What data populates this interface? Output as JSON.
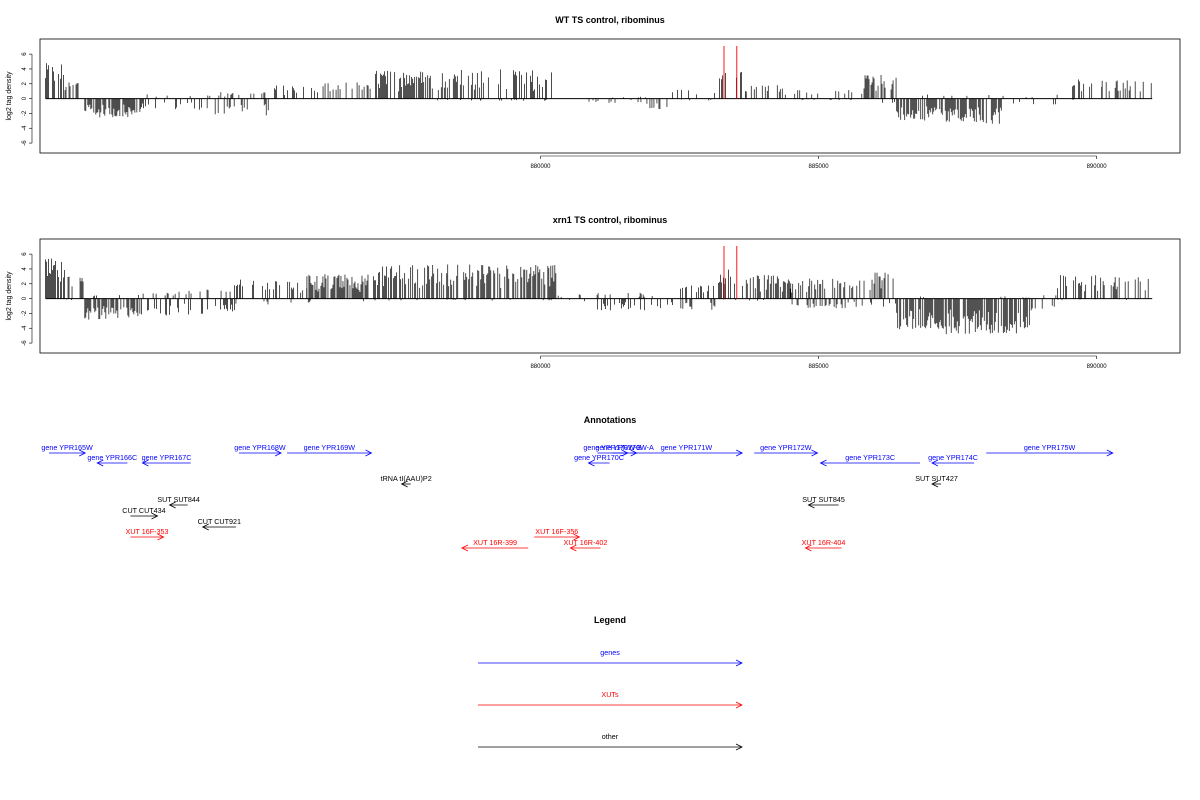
{
  "chart_data": [
    {
      "type": "bar",
      "title": "WT TS control, ribominus",
      "ylabel": "log2 tag density",
      "xlim": [
        871000,
        891500
      ],
      "ylim": [
        -6.8,
        7.5
      ],
      "x_ticks": [
        880000,
        885000,
        890000
      ],
      "y_ticks": [
        -6,
        -4,
        -2,
        0,
        2,
        4,
        6
      ],
      "data_range": [
        871100,
        891000
      ],
      "highlight_x": [
        883300,
        883530
      ],
      "segments": [
        [
          871100,
          871450,
          2.3,
          4.8,
          0
        ],
        [
          871450,
          871700,
          1.5,
          2.5,
          0
        ],
        [
          871800,
          872800,
          0.0,
          0.0,
          -2.6
        ],
        [
          872800,
          874000,
          0.2,
          0.6,
          -1.5
        ],
        [
          874000,
          875200,
          0.4,
          0.9,
          -2.4
        ],
        [
          875200,
          876000,
          0.8,
          1.8,
          0
        ],
        [
          876000,
          877000,
          1.0,
          2.2,
          -0.3
        ],
        [
          877000,
          878000,
          2.2,
          3.8,
          0
        ],
        [
          878000,
          880200,
          1.4,
          4.0,
          -0.3
        ],
        [
          880200,
          881800,
          0.0,
          0.2,
          -0.6
        ],
        [
          881800,
          882300,
          0.0,
          0.4,
          -1.4
        ],
        [
          882300,
          883200,
          0.3,
          1.3,
          -0.3
        ],
        [
          883200,
          883700,
          1.2,
          3.8,
          0
        ],
        [
          883700,
          884500,
          0.8,
          2.0,
          0
        ],
        [
          884500,
          885800,
          0.3,
          1.2,
          -0.2
        ],
        [
          885800,
          886400,
          1.3,
          3.2,
          -0.8
        ],
        [
          886400,
          887200,
          0.0,
          0.6,
          -3.0
        ],
        [
          887200,
          888300,
          0.0,
          0.5,
          -3.4
        ],
        [
          888300,
          889300,
          0.0,
          0.6,
          -0.9
        ],
        [
          889300,
          890100,
          0.8,
          2.6,
          -0.2
        ],
        [
          890100,
          891000,
          1.0,
          2.5,
          0
        ]
      ]
    },
    {
      "type": "bar",
      "title": "xrn1 TS control, ribominus",
      "ylabel": "log2 tag density",
      "xlim": [
        871000,
        891500
      ],
      "ylim": [
        -6.8,
        7.5
      ],
      "x_ticks": [
        880000,
        885000,
        890000
      ],
      "y_ticks": [
        -6,
        -4,
        -2,
        0,
        2,
        4,
        6
      ],
      "data_range": [
        871100,
        891000
      ],
      "highlight_x": [
        883300,
        883530
      ],
      "segments": [
        [
          871100,
          871450,
          2.5,
          5.4,
          0
        ],
        [
          871450,
          871800,
          1.8,
          3.0,
          -0.2
        ],
        [
          871800,
          872800,
          0.2,
          0.5,
          -3.0
        ],
        [
          872800,
          873500,
          0.3,
          0.8,
          -2.3
        ],
        [
          873500,
          874500,
          0.5,
          1.4,
          -2.2
        ],
        [
          874500,
          875800,
          1.2,
          2.6,
          -0.8
        ],
        [
          875800,
          877000,
          2.0,
          3.3,
          -0.6
        ],
        [
          877000,
          880300,
          2.2,
          4.6,
          -0.3
        ],
        [
          880300,
          881000,
          0.2,
          0.6,
          -0.4
        ],
        [
          881000,
          882500,
          0.2,
          0.8,
          -1.6
        ],
        [
          882500,
          883200,
          0.6,
          1.8,
          -1.6
        ],
        [
          883200,
          883700,
          1.5,
          4.0,
          -0.3
        ],
        [
          883700,
          884500,
          1.5,
          3.2,
          -0.3
        ],
        [
          884500,
          885800,
          1.0,
          2.8,
          -1.3
        ],
        [
          885800,
          886400,
          1.8,
          3.8,
          -1.2
        ],
        [
          886400,
          887200,
          0.0,
          0.3,
          -4.3
        ],
        [
          887200,
          888800,
          0.0,
          0.3,
          -4.8
        ],
        [
          888800,
          889300,
          0.2,
          0.6,
          -1.6
        ],
        [
          889300,
          890100,
          1.2,
          3.2,
          -0.2
        ],
        [
          890100,
          891000,
          1.2,
          3.0,
          -0.2
        ]
      ]
    }
  ],
  "annotations": {
    "title": "Annotations",
    "features": [
      {
        "label": "gene YPR165W",
        "color": "#0000ff",
        "start": 871150,
        "end": 871750,
        "dir": "+",
        "row": 0
      },
      {
        "label": "gene YPR166C",
        "color": "#0000ff",
        "start": 871950,
        "end": 872450,
        "dir": "-",
        "row": 1
      },
      {
        "label": "gene YPR167C",
        "color": "#0000ff",
        "start": 872700,
        "end": 873500,
        "dir": "-",
        "row": 1
      },
      {
        "label": "gene YPR168W",
        "color": "#0000ff",
        "start": 874300,
        "end": 875000,
        "dir": "+",
        "row": 0
      },
      {
        "label": "gene YPR169W",
        "color": "#0000ff",
        "start": 875100,
        "end": 876500,
        "dir": "+",
        "row": 0
      },
      {
        "label": "gene YPR170C",
        "color": "#0000ff",
        "start": 880100,
        "end": 880450,
        "dir": "-",
        "row": 1
      },
      {
        "label": "gene YPR170W-B",
        "color": "#0000ff",
        "start": 880250,
        "end": 880750,
        "dir": "+",
        "row": 0
      },
      {
        "label": "gene YPR170W-A",
        "color": "#0000ff",
        "start": 880500,
        "end": 880900,
        "dir": "+",
        "row": 0
      },
      {
        "label": "gene YPR171W",
        "color": "#0000ff",
        "start": 880800,
        "end": 882650,
        "dir": "+",
        "row": 0
      },
      {
        "label": "gene YPR172W",
        "color": "#0000ff",
        "start": 882850,
        "end": 883900,
        "dir": "+",
        "row": 0
      },
      {
        "label": "gene YPR173C",
        "color": "#0000ff",
        "start": 883950,
        "end": 885600,
        "dir": "-",
        "row": 1
      },
      {
        "label": "gene YPR174C",
        "color": "#0000ff",
        "start": 885800,
        "end": 886500,
        "dir": "-",
        "row": 1
      },
      {
        "label": "gene YPR175W",
        "color": "#0000ff",
        "start": 886700,
        "end": 888800,
        "dir": "+",
        "row": 0
      },
      {
        "label": "tRNA tI(AAU)P2",
        "color": "#000000",
        "start": 877000,
        "end": 877150,
        "dir": "-",
        "row": 2
      },
      {
        "label": "SUT SUT844",
        "color": "#000000",
        "start": 873150,
        "end": 873450,
        "dir": "-",
        "row": 3
      },
      {
        "label": "CUT CUT434",
        "color": "#000000",
        "start": 872500,
        "end": 872950,
        "dir": "+",
        "row": 4
      },
      {
        "label": "CUT CUT921",
        "color": "#000000",
        "start": 873700,
        "end": 874250,
        "dir": "-",
        "row": 5
      },
      {
        "label": "SUT SUT845",
        "color": "#000000",
        "start": 883750,
        "end": 884250,
        "dir": "-",
        "row": 3
      },
      {
        "label": "SUT SUT427",
        "color": "#000000",
        "start": 885800,
        "end": 885950,
        "dir": "-",
        "row": 2
      },
      {
        "label": "XUT 16F-353",
        "color": "#ff0000",
        "start": 872500,
        "end": 873050,
        "dir": "+",
        "row": 6
      },
      {
        "label": "XUT 16F-356",
        "color": "#ff0000",
        "start": 879200,
        "end": 879950,
        "dir": "+",
        "row": 6
      },
      {
        "label": "XUT 16R-399",
        "color": "#ff0000",
        "start": 878000,
        "end": 879100,
        "dir": "-",
        "row": 7
      },
      {
        "label": "XUT 16R-402",
        "color": "#ff0000",
        "start": 879800,
        "end": 880300,
        "dir": "-",
        "row": 7
      },
      {
        "label": "XUT 16R-404",
        "color": "#ff0000",
        "start": 883700,
        "end": 884300,
        "dir": "-",
        "row": 7
      }
    ]
  },
  "legend": {
    "title": "Legend",
    "items": [
      {
        "label": "genes",
        "color": "#0000ff"
      },
      {
        "label": "XUTs",
        "color": "#ff0000"
      },
      {
        "label": "other",
        "color": "#000000"
      }
    ]
  }
}
